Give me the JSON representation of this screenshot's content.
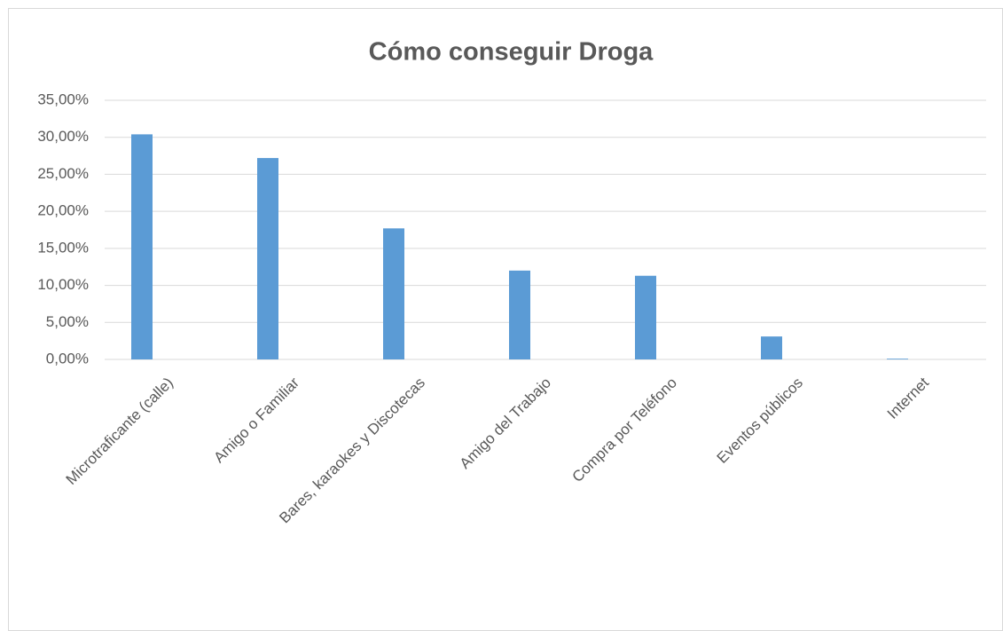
{
  "chart_data": {
    "type": "bar",
    "title": "Cómo conseguir Droga",
    "categories": [
      "Microtraficante (calle)",
      "Amigo o Familiar",
      "Bares, karaokes y Discotecas",
      "Amigo del Trabajo",
      "Compra por Teléfono",
      "Eventos públicos",
      "Internet"
    ],
    "values": [
      30.4,
      27.2,
      17.7,
      12.0,
      11.3,
      3.1,
      0.1
    ],
    "color": "#5b9bd5",
    "ylim": [
      0,
      35
    ],
    "yticks": [
      {
        "value": 0,
        "label": "0,00%"
      },
      {
        "value": 5,
        "label": "5,00%"
      },
      {
        "value": 10,
        "label": "10,00%"
      },
      {
        "value": 15,
        "label": "15,00%"
      },
      {
        "value": 20,
        "label": "20,00%"
      },
      {
        "value": 25,
        "label": "25,00%"
      },
      {
        "value": 30,
        "label": "30,00%"
      },
      {
        "value": 35,
        "label": "35,00%"
      }
    ],
    "grid": true
  }
}
